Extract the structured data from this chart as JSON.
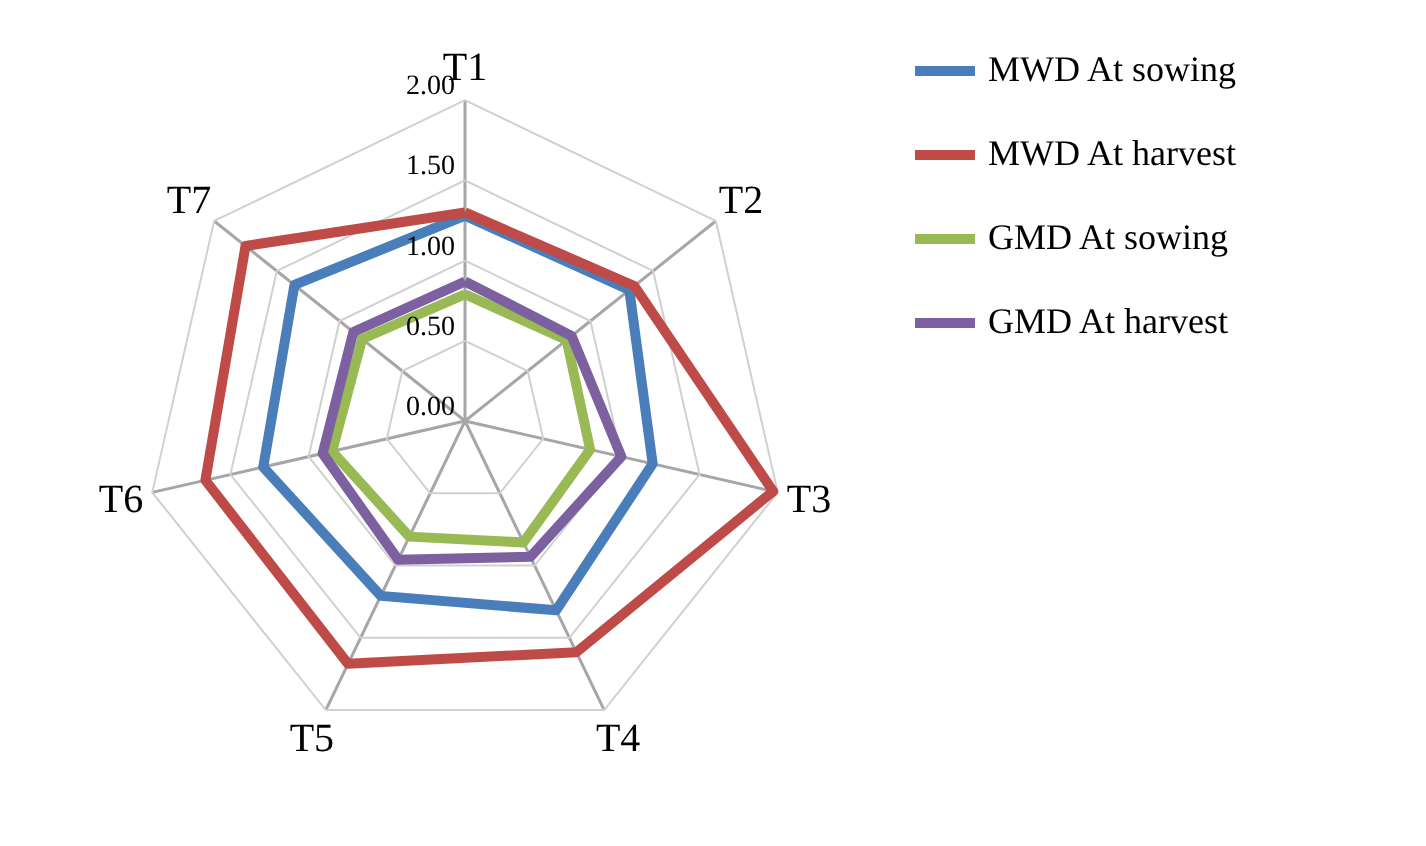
{
  "chart_data": {
    "type": "radar",
    "categories": [
      "T1",
      "T2",
      "T3",
      "T4",
      "T5",
      "T6",
      "T7"
    ],
    "series": [
      {
        "name": "MWD At sowing",
        "color": "#4a7ebb",
        "values": [
          1.28,
          1.31,
          1.2,
          1.31,
          1.21,
          1.29,
          1.36
        ]
      },
      {
        "name": "MWD At harvest",
        "color": "#be4b48",
        "values": [
          1.3,
          1.35,
          1.97,
          1.6,
          1.68,
          1.66,
          1.75
        ]
      },
      {
        "name": "GMD At sowing",
        "color": "#98b954",
        "values": [
          0.79,
          0.81,
          0.8,
          0.84,
          0.8,
          0.85,
          0.82
        ]
      },
      {
        "name": "GMD At harvest",
        "color": "#7d60a0",
        "values": [
          0.87,
          0.85,
          1.0,
          0.94,
          0.96,
          0.91,
          0.89
        ]
      }
    ],
    "ylim": [
      0,
      2
    ],
    "yticks": [
      {
        "value": 0,
        "label": "0.00"
      },
      {
        "value": 0.5,
        "label": "0.50"
      },
      {
        "value": 1,
        "label": "1.00"
      },
      {
        "value": 1.5,
        "label": "1.50"
      },
      {
        "value": 2,
        "label": "2.00"
      }
    ],
    "grid": true,
    "legend": "right"
  }
}
